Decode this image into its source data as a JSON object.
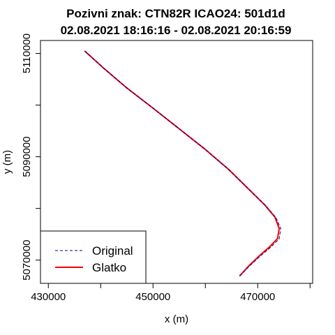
{
  "chart_data": {
    "type": "line",
    "title_line1": "Pozivni znak: CTN82R    ICAO24: 501d1d",
    "title_line2": "02.08.2021 18:16:16 - 02.08.2021 20:16:59",
    "xlabel": "x (m)",
    "ylabel": "y (m)",
    "xlim": [
      428500,
      480500
    ],
    "ylim": [
      5065500,
      5112500
    ],
    "x_ticks": [
      430000,
      440000,
      450000,
      460000,
      470000,
      480000
    ],
    "x_tick_labels": [
      "430000",
      "",
      "450000",
      "",
      "470000",
      ""
    ],
    "y_ticks": [
      5070000,
      5080000,
      5090000,
      5100000,
      5110000
    ],
    "y_tick_labels": [
      "5070000",
      "",
      "5090000",
      "",
      "5110000"
    ],
    "legend_position": "bottom-left",
    "series": [
      {
        "name": "Original",
        "color": "#00008b",
        "style": "dashed",
        "x": [
          437000,
          440500,
          445000,
          450000,
          455000,
          460000,
          464500,
          468000,
          471500,
          473500,
          474400,
          474100,
          472500,
          470500,
          468500,
          466600
        ],
        "y": [
          5110400,
          5107200,
          5103300,
          5099400,
          5095400,
          5091400,
          5087500,
          5084000,
          5080600,
          5078200,
          5076100,
          5074100,
          5072500,
          5070800,
          5068900,
          5067000
        ]
      },
      {
        "name": "Glatko",
        "color": "#ff0000",
        "style": "solid",
        "x": [
          437000,
          440500,
          445000,
          450000,
          455000,
          460000,
          464500,
          468000,
          471400,
          473300,
          474100,
          473800,
          472300,
          470400,
          468400,
          466600
        ],
        "y": [
          5110400,
          5107200,
          5103300,
          5099400,
          5095400,
          5091400,
          5087500,
          5084000,
          5080600,
          5078300,
          5076100,
          5074200,
          5072600,
          5070900,
          5069000,
          5067000
        ]
      }
    ]
  }
}
